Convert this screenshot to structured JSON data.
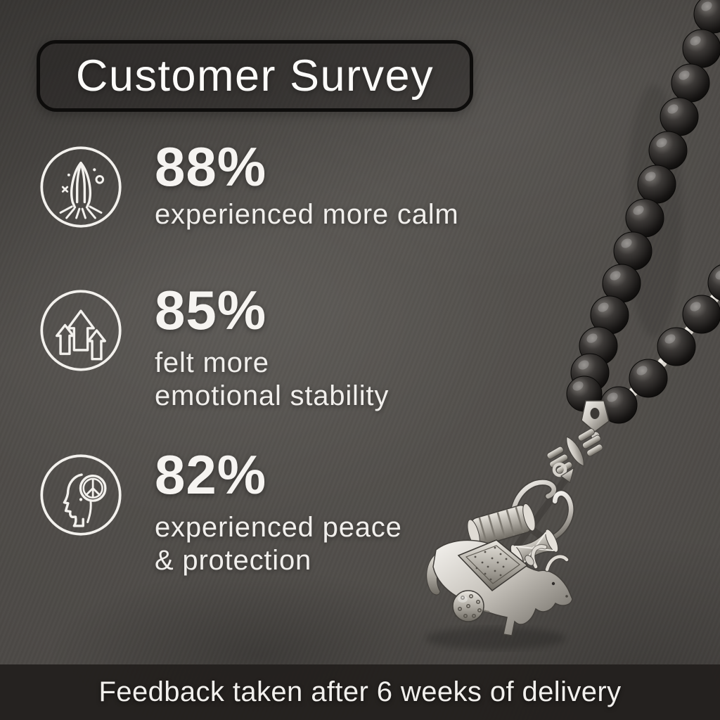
{
  "title": {
    "label": "Customer Survey"
  },
  "stats": [
    {
      "icon": "praying-hands-icon",
      "value": "88%",
      "lines": [
        "experienced more calm"
      ]
    },
    {
      "icon": "rising-arrows-icon",
      "value": "85%",
      "lines": [
        "felt more",
        "emotional stability"
      ]
    },
    {
      "icon": "peace-of-mind-icon",
      "value": "82%",
      "lines": [
        "experienced peace",
        "& protection"
      ]
    }
  ],
  "footer": {
    "label": "Feedback taken after 6 weeks of delivery"
  },
  "photo": {
    "name": "black-bead-necklace-with-silver-nandi-bull-trishul-and-damru-pendant"
  },
  "colors": {
    "background": "#4d4a47",
    "panel_border": "#0d0c0b",
    "text": "#f4f2ef",
    "footer_bar": "#221f1d",
    "bead_black": "#151312",
    "silver": "#cfccc5"
  }
}
